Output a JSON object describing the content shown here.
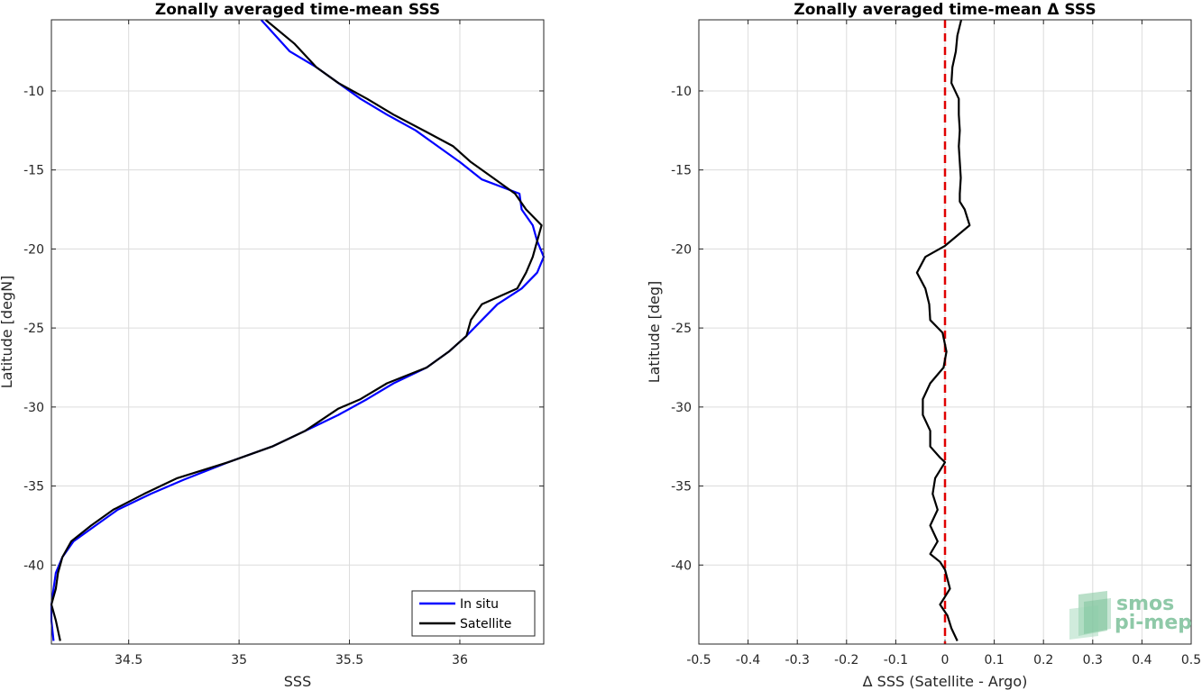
{
  "chart_data": [
    {
      "type": "line",
      "title": "Zonally averaged time-mean SSS",
      "xlabel": "SSS",
      "ylabel": "Latitude [degN]",
      "xlim": [
        34.15,
        36.38
      ],
      "ylim": [
        -45,
        -5.5
      ],
      "xticks": [
        34.5,
        35,
        35.5,
        36
      ],
      "xtick_labels": [
        "34.5",
        "35",
        "35.5",
        "36"
      ],
      "yticks": [
        -40,
        -35,
        -30,
        -25,
        -20,
        -15,
        -10
      ],
      "ytick_labels": [
        "-40",
        "-35",
        "-30",
        "-25",
        "-20",
        "-15",
        "-10"
      ],
      "grid": true,
      "legend_position": "bottom-right",
      "series": [
        {
          "name": "In situ",
          "color": "#0000ff",
          "points": [
            [
              35.1,
              -5.5
            ],
            [
              35.23,
              -7.5
            ],
            [
              35.35,
              -8.5
            ],
            [
              35.45,
              -9.5
            ],
            [
              35.55,
              -10.5
            ],
            [
              35.67,
              -11.5
            ],
            [
              35.8,
              -12.5
            ],
            [
              35.9,
              -13.5
            ],
            [
              36.0,
              -14.5
            ],
            [
              36.1,
              -15.6
            ],
            [
              36.27,
              -16.5
            ],
            [
              36.28,
              -17.5
            ],
            [
              36.33,
              -18.5
            ],
            [
              36.35,
              -19.5
            ],
            [
              36.38,
              -20.5
            ],
            [
              36.35,
              -21.5
            ],
            [
              36.28,
              -22.5
            ],
            [
              36.17,
              -23.5
            ],
            [
              36.1,
              -24.5
            ],
            [
              36.03,
              -25.5
            ],
            [
              35.95,
              -26.5
            ],
            [
              35.85,
              -27.5
            ],
            [
              35.7,
              -28.5
            ],
            [
              35.58,
              -29.5
            ],
            [
              35.45,
              -30.5
            ],
            [
              35.3,
              -31.5
            ],
            [
              35.15,
              -32.5
            ],
            [
              34.95,
              -33.5
            ],
            [
              34.75,
              -34.6
            ],
            [
              34.6,
              -35.5
            ],
            [
              34.45,
              -36.5
            ],
            [
              34.35,
              -37.5
            ],
            [
              34.25,
              -38.5
            ],
            [
              34.2,
              -39.5
            ],
            [
              34.17,
              -40.5
            ],
            [
              34.16,
              -41.5
            ],
            [
              34.15,
              -42.5
            ],
            [
              34.15,
              -43.5
            ],
            [
              34.16,
              -44.8
            ]
          ]
        },
        {
          "name": "Satellite",
          "color": "#000000",
          "points": [
            [
              35.12,
              -5.5
            ],
            [
              35.25,
              -7.0
            ],
            [
              35.35,
              -8.5
            ],
            [
              35.45,
              -9.5
            ],
            [
              35.58,
              -10.5
            ],
            [
              35.7,
              -11.5
            ],
            [
              35.85,
              -12.6
            ],
            [
              35.97,
              -13.5
            ],
            [
              36.05,
              -14.5
            ],
            [
              36.15,
              -15.5
            ],
            [
              36.25,
              -16.5
            ],
            [
              36.3,
              -17.5
            ],
            [
              36.37,
              -18.5
            ],
            [
              36.35,
              -19.5
            ],
            [
              36.33,
              -20.5
            ],
            [
              36.3,
              -21.5
            ],
            [
              36.26,
              -22.5
            ],
            [
              36.1,
              -23.5
            ],
            [
              36.05,
              -24.5
            ],
            [
              36.03,
              -25.5
            ],
            [
              35.95,
              -26.5
            ],
            [
              35.85,
              -27.5
            ],
            [
              35.67,
              -28.5
            ],
            [
              35.55,
              -29.5
            ],
            [
              35.45,
              -30.1
            ],
            [
              35.3,
              -31.5
            ],
            [
              35.15,
              -32.5
            ],
            [
              34.95,
              -33.5
            ],
            [
              34.72,
              -34.5
            ],
            [
              34.57,
              -35.5
            ],
            [
              34.43,
              -36.5
            ],
            [
              34.33,
              -37.5
            ],
            [
              34.24,
              -38.5
            ],
            [
              34.2,
              -39.5
            ],
            [
              34.18,
              -40.5
            ],
            [
              34.17,
              -41.5
            ],
            [
              34.15,
              -42.5
            ],
            [
              34.17,
              -43.5
            ],
            [
              34.19,
              -44.8
            ]
          ]
        }
      ]
    },
    {
      "type": "line",
      "title": "Zonally averaged time-mean Δ SSS",
      "xlabel": "Δ SSS (Satellite - Argo)",
      "ylabel": "Latitude [deg]",
      "xlim": [
        -0.5,
        0.5
      ],
      "ylim": [
        -45,
        -5.5
      ],
      "xticks": [
        -0.5,
        -0.4,
        -0.3,
        -0.2,
        -0.1,
        0,
        0.1,
        0.2,
        0.3,
        0.4,
        0.5
      ],
      "xtick_labels": [
        "-0.5",
        "-0.4",
        "-0.3",
        "-0.2",
        "-0.1",
        "0",
        "0.1",
        "0.2",
        "0.3",
        "0.4",
        "0.5"
      ],
      "yticks": [
        -40,
        -35,
        -30,
        -25,
        -20,
        -15,
        -10
      ],
      "ytick_labels": [
        "-40",
        "-35",
        "-30",
        "-25",
        "-20",
        "-15",
        "-10"
      ],
      "grid": true,
      "reference_line": {
        "x": 0,
        "color": "#e00000",
        "style": "dashed"
      },
      "series": [
        {
          "color": "#000000",
          "points": [
            [
              0.033,
              -5.5
            ],
            [
              0.025,
              -6.5
            ],
            [
              0.022,
              -7.5
            ],
            [
              0.015,
              -8.5
            ],
            [
              0.013,
              -9.5
            ],
            [
              0.028,
              -10.5
            ],
            [
              0.028,
              -11.5
            ],
            [
              0.03,
              -12.5
            ],
            [
              0.028,
              -13.5
            ],
            [
              0.03,
              -14.5
            ],
            [
              0.032,
              -15.5
            ],
            [
              0.03,
              -16.5
            ],
            [
              0.03,
              -17.0
            ],
            [
              0.04,
              -17.5
            ],
            [
              0.05,
              -18.5
            ],
            [
              0.0,
              -19.8
            ],
            [
              -0.04,
              -20.5
            ],
            [
              -0.057,
              -21.5
            ],
            [
              -0.04,
              -22.5
            ],
            [
              -0.032,
              -23.5
            ],
            [
              -0.03,
              -24.5
            ],
            [
              -0.005,
              -25.3
            ],
            [
              0.003,
              -26.5
            ],
            [
              -0.003,
              -27.5
            ],
            [
              -0.03,
              -28.5
            ],
            [
              -0.045,
              -29.5
            ],
            [
              -0.045,
              -30.5
            ],
            [
              -0.03,
              -31.5
            ],
            [
              -0.03,
              -32.5
            ],
            [
              -0.01,
              -33.2
            ],
            [
              0.0,
              -33.5
            ],
            [
              -0.02,
              -34.5
            ],
            [
              -0.025,
              -35.5
            ],
            [
              -0.015,
              -36.5
            ],
            [
              -0.03,
              -37.5
            ],
            [
              -0.015,
              -38.5
            ],
            [
              -0.03,
              -39.3
            ],
            [
              -0.01,
              -39.8
            ],
            [
              0.0,
              -40.3
            ],
            [
              0.01,
              -41.5
            ],
            [
              0.0,
              -42.0
            ],
            [
              -0.01,
              -42.5
            ],
            [
              0.005,
              -43.2
            ],
            [
              0.013,
              -44.0
            ],
            [
              0.025,
              -44.8
            ]
          ]
        }
      ]
    }
  ],
  "logo": {
    "line1": "smos",
    "line2": "pi-mep"
  }
}
